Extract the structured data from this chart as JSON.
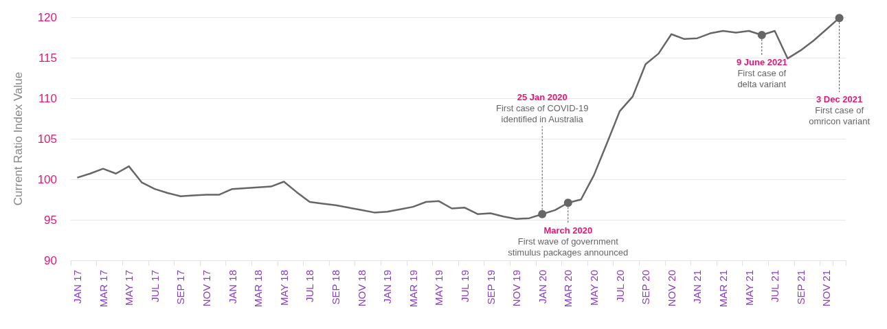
{
  "chart_data": {
    "type": "line",
    "ylabel": "Current Ratio Index Value",
    "categories": [
      "JAN 17",
      null,
      "MAR 17",
      null,
      "MAY 17",
      null,
      "JUL 17",
      null,
      "SEP 17",
      null,
      "NOV 17",
      null,
      "JAN 18",
      null,
      "MAR 18",
      null,
      "MAY 18",
      null,
      "JUL 18",
      null,
      "SEP 18",
      null,
      "NOV 18",
      null,
      "JAN 19",
      null,
      "MAR 19",
      null,
      "MAY 19",
      null,
      "JUL 19",
      null,
      "SEP 19",
      null,
      "NOV 19",
      null,
      "JAN 20",
      null,
      "MAR 20",
      null,
      "MAY 20",
      null,
      "JUL 20",
      null,
      "SEP 20",
      null,
      "NOV 20",
      null,
      "JAN 21",
      null,
      "MAR 21",
      null,
      "MAY 21",
      null,
      "JUL 21",
      null,
      "SEP 21",
      null,
      "NOV 21",
      null
    ],
    "series": [
      {
        "color": "#666666",
        "values": [
          100.2,
          100.7,
          101.3,
          100.7,
          101.6,
          99.6,
          98.8,
          98.3,
          97.9,
          98.0,
          98.1,
          98.1,
          98.8,
          98.9,
          99.0,
          99.1,
          99.7,
          98.4,
          97.2,
          97.0,
          96.8,
          96.5,
          96.2,
          95.9,
          96.0,
          96.3,
          96.6,
          97.2,
          97.3,
          96.4,
          96.5,
          95.7,
          95.8,
          95.4,
          95.1,
          95.2,
          95.7,
          96.2,
          97.1,
          97.5,
          100.5,
          104.4,
          108.4,
          110.2,
          114.2,
          115.5,
          117.9,
          117.3,
          117.4,
          118.0,
          118.3,
          118.1,
          118.3,
          117.8,
          118.3,
          114.9,
          115.9,
          117.1,
          118.5,
          119.9
        ]
      }
    ],
    "ylim": [
      90,
      120
    ],
    "yticks": [
      90,
      95,
      100,
      105,
      110,
      115,
      120
    ],
    "grid": "y",
    "marker": "none",
    "line_style": "solid",
    "annotations": [
      {
        "text": "25 Jan 2020\nFirst case of COVID-19\nidentified in Australia",
        "x": "JAN 20",
        "y": 95.7
      },
      {
        "text": "March 2020\nFirst wave of government\nstimulus packages announced",
        "x": "MAR 20",
        "y": 97.1
      },
      {
        "text": "9 June 2021\nFirst case of\ndelta variant",
        "y": 117.8
      },
      {
        "text": "3 Dec 2021\nFirst case of\nomricon variant",
        "y": 119.9
      }
    ]
  }
}
